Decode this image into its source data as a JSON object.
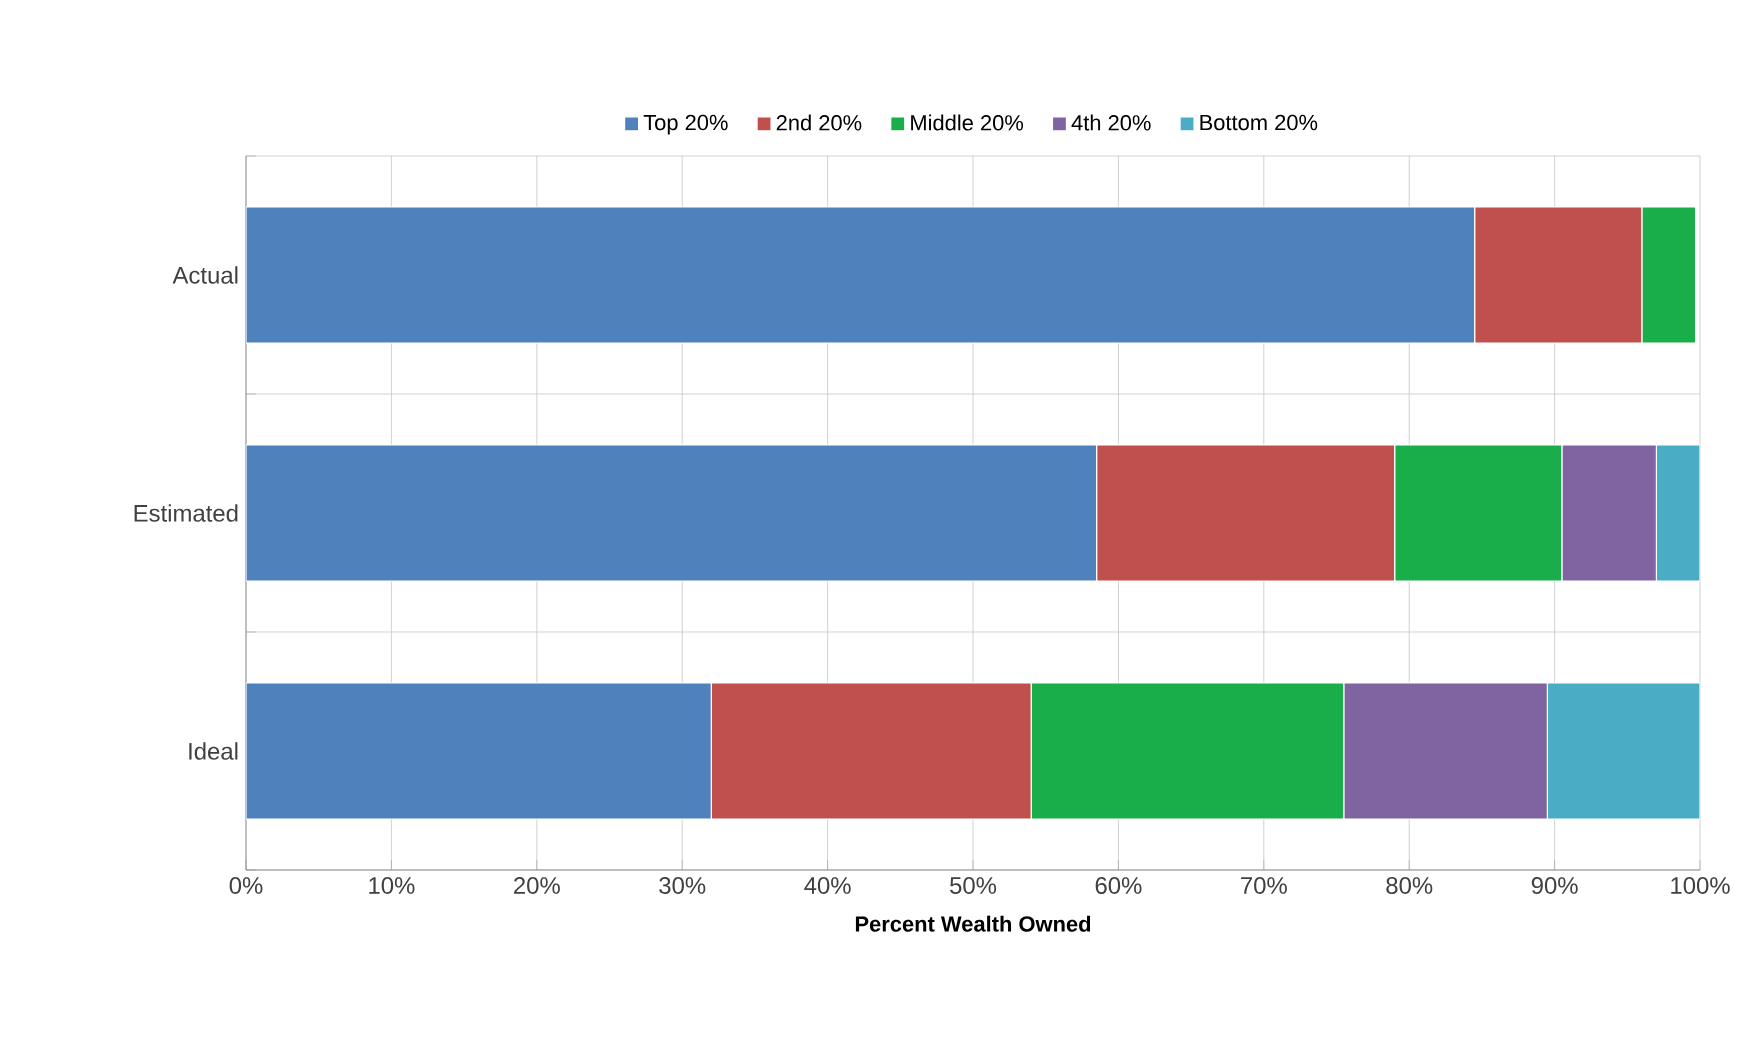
{
  "chart_data": {
    "type": "bar",
    "orientation": "horizontal",
    "stacked": true,
    "xlabel": "Percent Wealth Owned",
    "categories": [
      "Actual",
      "Estimated",
      "Ideal"
    ],
    "series": [
      {
        "name": "Top 20%",
        "color": "#4f81bd",
        "values": [
          84.5,
          58.5,
          32
        ]
      },
      {
        "name": "2nd 20%",
        "color": "#c0504d",
        "values": [
          11.5,
          20.5,
          22
        ]
      },
      {
        "name": "Middle 20%",
        "color": "#1aae4a",
        "values": [
          3.7,
          11.5,
          21.5
        ]
      },
      {
        "name": "4th 20%",
        "color": "#8064a2",
        "values": [
          null,
          6.5,
          14
        ]
      },
      {
        "name": "Bottom 20%",
        "color": "#4bacc6",
        "values": [
          null,
          3,
          10.5
        ]
      }
    ],
    "xlim": [
      0,
      100
    ],
    "xticks": [
      {
        "value": 0,
        "label": "0%"
      },
      {
        "value": 10,
        "label": "10%"
      },
      {
        "value": 20,
        "label": "20%"
      },
      {
        "value": 30,
        "label": "30%"
      },
      {
        "value": 40,
        "label": "40%"
      },
      {
        "value": 50,
        "label": "50%"
      },
      {
        "value": 60,
        "label": "60%"
      },
      {
        "value": 70,
        "label": "70%"
      },
      {
        "value": 80,
        "label": "80%"
      },
      {
        "value": 90,
        "label": "90%"
      },
      {
        "value": 100,
        "label": "100%"
      }
    ],
    "grid": true,
    "legend": "top"
  }
}
